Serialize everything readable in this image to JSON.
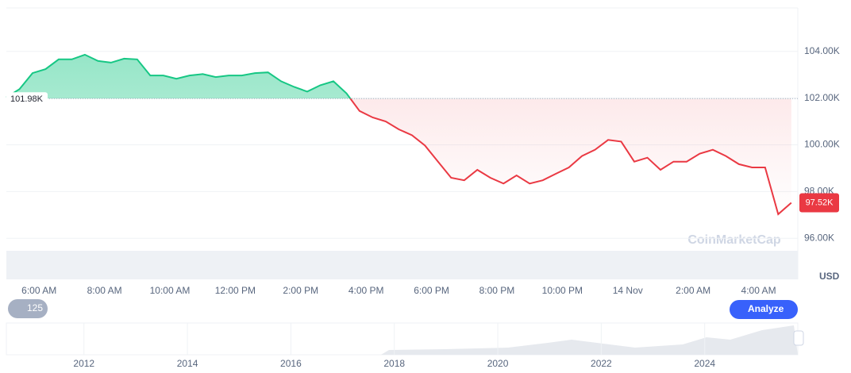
{
  "chart_data": {
    "type": "line",
    "up_color": "#16c784",
    "down_color": "#ea3943",
    "x": [
      5,
      5.4,
      5.8,
      6.2,
      6.6,
      7,
      7.4,
      7.8,
      8.2,
      8.6,
      9,
      9.4,
      9.8,
      10.2,
      10.6,
      11,
      11.4,
      11.8,
      12.2,
      12.6,
      13,
      13.4,
      13.8,
      14.2,
      14.6,
      15,
      15.4,
      15.8,
      16.2,
      16.6,
      17,
      17.4,
      17.8,
      18.2,
      18.6,
      19,
      19.4,
      19.8,
      20.2,
      20.6,
      21,
      21.4,
      21.8,
      22.2,
      22.6,
      23,
      23.4,
      23.8,
      24.2,
      24.6,
      25,
      25.4,
      25.8,
      26.2,
      26.6,
      27,
      27.4,
      27.8,
      28.2,
      28.6,
      29
    ],
    "values": [
      102.03,
      102.38,
      103.07,
      103.24,
      103.66,
      103.66,
      103.86,
      103.59,
      103.52,
      103.69,
      103.66,
      102.97,
      102.97,
      102.83,
      102.97,
      103.03,
      102.9,
      102.97,
      102.97,
      103.07,
      103.1,
      102.72,
      102.48,
      102.28,
      102.55,
      102.72,
      102.2,
      101.45,
      101.17,
      101.0,
      100.66,
      100.41,
      99.97,
      99.28,
      98.59,
      98.48,
      98.93,
      98.59,
      98.34,
      98.69,
      98.34,
      98.48,
      98.76,
      99.03,
      99.52,
      99.79,
      100.21,
      100.14,
      99.28,
      99.45,
      98.93,
      99.28,
      99.28,
      99.62,
      99.79,
      99.52,
      99.17,
      99.03,
      99.03,
      97.03,
      97.52
    ],
    "xlim": [
      5,
      29.2
    ],
    "xticks": [
      {
        "value": 6,
        "label": "6:00 AM"
      },
      {
        "value": 8,
        "label": "8:00 AM"
      },
      {
        "value": 10,
        "label": "10:00 AM"
      },
      {
        "value": 12,
        "label": "12:00 PM"
      },
      {
        "value": 14,
        "label": "2:00 PM"
      },
      {
        "value": 16,
        "label": "4:00 PM"
      },
      {
        "value": 18,
        "label": "6:00 PM"
      },
      {
        "value": 20,
        "label": "8:00 PM"
      },
      {
        "value": 22,
        "label": "10:00 PM"
      },
      {
        "value": 24,
        "label": "14 Nov"
      },
      {
        "value": 26,
        "label": "2:00 AM"
      },
      {
        "value": 28,
        "label": "4:00 AM"
      }
    ],
    "ylim": [
      94.24,
      105.86
    ],
    "yticks": [
      {
        "value": 96,
        "label": "96.00K"
      },
      {
        "value": 98,
        "label": "98.00K"
      },
      {
        "value": 100,
        "label": "100.00K"
      },
      {
        "value": 102,
        "label": "102.00K"
      },
      {
        "value": 104,
        "label": "104.00K"
      }
    ],
    "grid": true,
    "baseline": {
      "value": 101.98,
      "label": "101.98K"
    },
    "current": {
      "value": 97.52,
      "label": "97.52K"
    },
    "currency": "USD",
    "watermark": "CoinMarketCap",
    "history_badge": "125",
    "analyze_button": "Analyze",
    "navigator": {
      "xlim": [
        2010.5,
        2025.8
      ],
      "xticks": [
        2012,
        2014,
        2016,
        2018,
        2020,
        2022,
        2024
      ]
    }
  }
}
